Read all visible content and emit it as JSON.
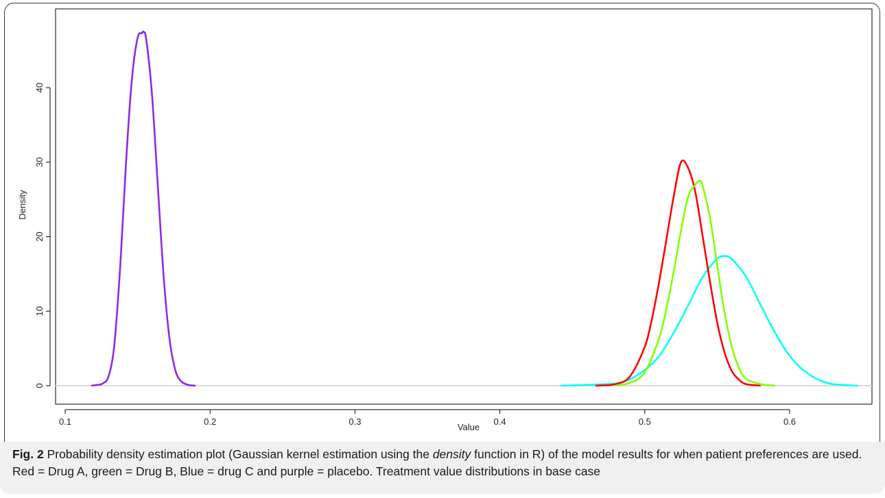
{
  "chart_data": {
    "type": "line",
    "title": "",
    "xlabel": "Value",
    "ylabel": "Density",
    "xlim": [
      0.1,
      0.65
    ],
    "ylim": [
      0,
      47.5
    ],
    "xticks": [
      0.1,
      0.2,
      0.3,
      0.4,
      0.5,
      0.6
    ],
    "xtick_labels": [
      "0.1",
      "0.2",
      "0.3",
      "0.4",
      "0.5",
      "0.6"
    ],
    "yticks": [
      0,
      10,
      20,
      30,
      40
    ],
    "ytick_labels": [
      "0",
      "10",
      "20",
      "30",
      "40"
    ],
    "baseline": 0,
    "legend": "none",
    "series": [
      {
        "color": "#8a2be2",
        "x": [
          0.118,
          0.122,
          0.126,
          0.13,
          0.134,
          0.138,
          0.142,
          0.146,
          0.15,
          0.153,
          0.154,
          0.156,
          0.16,
          0.164,
          0.168,
          0.172,
          0.176,
          0.18,
          0.185,
          0.19
        ],
        "y": [
          0,
          0.1,
          0.3,
          1.3,
          5.6,
          16.1,
          29.9,
          41.1,
          46.7,
          47.3,
          47.5,
          46.4,
          38.9,
          26.6,
          14.6,
          6.3,
          2.1,
          0.6,
          0.1,
          0
        ]
      },
      {
        "color": "#00ffff",
        "x": [
          0.442,
          0.46,
          0.48,
          0.49,
          0.5,
          0.51,
          0.52,
          0.53,
          0.54,
          0.55,
          0.555,
          0.56,
          0.57,
          0.58,
          0.59,
          0.6,
          0.61,
          0.62,
          0.63,
          0.647
        ],
        "y": [
          0,
          0.1,
          0.3,
          0.9,
          2.1,
          4.0,
          7.1,
          10.8,
          14.6,
          17.0,
          17.4,
          17.0,
          14.6,
          10.8,
          7.1,
          4.0,
          2.0,
          0.8,
          0.2,
          0
        ]
      },
      {
        "color": "#ff0000",
        "x": [
          0.466,
          0.48,
          0.49,
          0.5,
          0.505,
          0.51,
          0.515,
          0.52,
          0.525,
          0.53,
          0.535,
          0.54,
          0.545,
          0.55,
          0.555,
          0.56,
          0.565,
          0.57,
          0.58
        ],
        "y": [
          0,
          0.2,
          1.3,
          5.2,
          9.0,
          14.0,
          19.7,
          25.4,
          30.0,
          29.2,
          25.9,
          20.0,
          14.0,
          8.5,
          4.5,
          2.0,
          0.8,
          0.2,
          0
        ]
      },
      {
        "color": "#7fff00",
        "x": [
          0.48,
          0.49,
          0.5,
          0.51,
          0.515,
          0.52,
          0.525,
          0.53,
          0.535,
          0.538,
          0.54,
          0.545,
          0.55,
          0.555,
          0.56,
          0.565,
          0.57,
          0.58,
          0.59
        ],
        "y": [
          0,
          0.4,
          1.8,
          6.4,
          10.4,
          15.3,
          20.8,
          25.4,
          27.0,
          27.5,
          26.8,
          22.6,
          16.2,
          9.9,
          5.3,
          2.4,
          0.9,
          0.2,
          0
        ]
      }
    ]
  },
  "caption": {
    "fig_label": "Fig. 2",
    "text_before_italic": "Probability density estimation plot (Gaussian kernel estimation using the",
    "italic_word": "density",
    "text_after_italic": "function in R) of the model results for when patient preferences are used. Red = Drug A, green = Drug B, Blue = drug C and purple = placebo. Treatment value distributions in base case"
  }
}
